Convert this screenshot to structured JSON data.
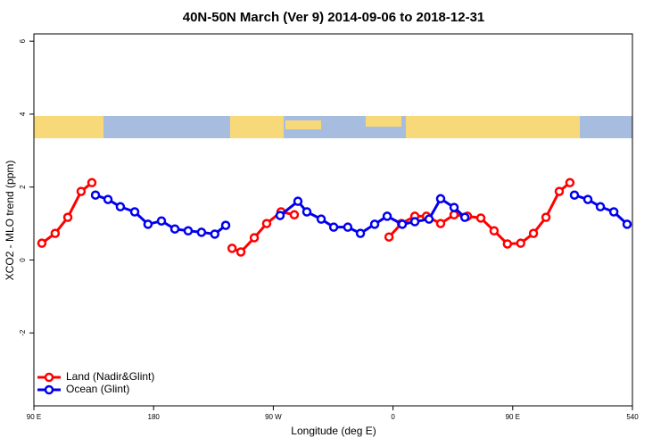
{
  "chart_data": {
    "type": "line",
    "title": "40N-50N March (Ver 9)   2014-09-06 to 2018-12-31",
    "x_label": "Longitude (deg E)",
    "y_label": "XCO2 - MLO trend (ppm)",
    "xlim": [
      90,
      540
    ],
    "ylim": [
      -4,
      6.2
    ],
    "xticks": [
      {
        "value": 90,
        "label": "90 E"
      },
      180,
      {
        "value": 270,
        "label": "90 W"
      },
      {
        "value": 360,
        "label": "0"
      },
      {
        "value": 450,
        "label": "90 E"
      },
      540
    ],
    "yticks": [
      -2,
      0,
      2,
      4,
      6
    ],
    "legend": "bottom-left",
    "series": [
      {
        "name": "Land (Nadir&Glint)",
        "color": "#ff0000",
        "x": [
          96,
          106,
          115.5,
          125.5,
          133.6,
          null,
          239,
          245.6,
          255.7,
          265,
          275.8,
          285.8,
          null,
          357,
          366.3,
          376.4,
          385.1,
          395.8,
          405.9,
          416,
          426,
          436,
          446,
          456,
          465.6,
          475,
          485,
          493
        ],
        "values": [
          0.46,
          0.73,
          1.17,
          1.88,
          2.12,
          null,
          0.32,
          0.22,
          0.61,
          1.0,
          1.32,
          1.24,
          null,
          0.63,
          1.0,
          1.2,
          1.2,
          1.0,
          1.24,
          1.2,
          1.15,
          0.8,
          0.44,
          0.46,
          0.73,
          1.17,
          1.88,
          2.12
        ]
      },
      {
        "name": "Ocean (Glint)",
        "color": "#0000ee",
        "x": [
          136.3,
          145.7,
          155,
          165.8,
          175.8,
          185.9,
          196,
          206,
          216,
          226,
          234.2,
          null,
          275.1,
          288.5,
          295.2,
          306,
          315.4,
          326,
          335.5,
          346.2,
          355.6,
          367,
          376.4,
          387.1,
          395.8,
          405.9,
          414,
          null,
          496.4,
          506.5,
          515.9,
          526,
          536
        ],
        "values": [
          1.78,
          1.66,
          1.46,
          1.32,
          0.98,
          1.07,
          0.85,
          0.8,
          0.76,
          0.71,
          0.95,
          null,
          1.22,
          1.61,
          1.32,
          1.12,
          0.9,
          0.9,
          0.73,
          0.98,
          1.2,
          0.98,
          1.05,
          1.12,
          1.68,
          1.44,
          1.17,
          null,
          1.78,
          1.66,
          1.46,
          1.32,
          0.98
        ]
      }
    ]
  }
}
